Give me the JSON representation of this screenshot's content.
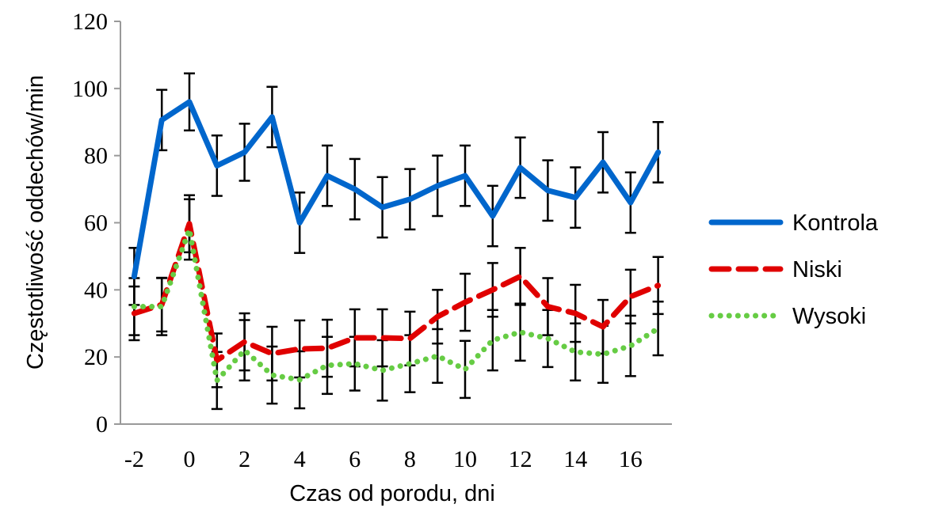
{
  "chart_data": {
    "type": "line",
    "xlabel": "Czas od porodu, dni",
    "ylabel": "Częstotliwość oddechów/min",
    "xlim": [
      -2.5,
      17.5
    ],
    "ylim": [
      0,
      120
    ],
    "x_ticks": [
      -2,
      0,
      2,
      4,
      6,
      8,
      10,
      12,
      14,
      16
    ],
    "y_ticks": [
      0,
      20,
      40,
      60,
      80,
      100,
      120
    ],
    "x": [
      -2,
      -1,
      0,
      1,
      2,
      3,
      4,
      5,
      6,
      7,
      8,
      9,
      10,
      11,
      12,
      13,
      14,
      15,
      16,
      17
    ],
    "legend_position": "right",
    "grid": false,
    "series": [
      {
        "name": "Kontrola",
        "color": "#0066CC",
        "style": "solid",
        "values": [
          44,
          90.6,
          96,
          77,
          81,
          91.5,
          60,
          74,
          70,
          64.6,
          67,
          71,
          74,
          62,
          76.4,
          69.6,
          67.5,
          78,
          66,
          81
        ],
        "error": [
          8.5,
          9,
          8.5,
          9,
          8.5,
          9,
          9,
          9,
          9,
          9,
          9,
          9,
          9,
          9,
          9,
          9,
          9,
          9,
          9,
          9
        ]
      },
      {
        "name": "Niski",
        "color": "#E00000",
        "style": "dashed",
        "values": [
          33,
          35.6,
          59.7,
          19,
          24.5,
          21,
          22.4,
          22.6,
          25.7,
          25.7,
          25.5,
          32,
          36.3,
          40,
          44,
          35,
          33,
          29,
          38,
          41.3
        ],
        "error": [
          8,
          8,
          8.5,
          8,
          8.5,
          8,
          8.5,
          8.5,
          8.5,
          8.5,
          8,
          8,
          8.5,
          8,
          8.5,
          8.5,
          8.5,
          8,
          8,
          8.5
        ]
      },
      {
        "name": "Wysoki",
        "color": "#66CC44",
        "style": "dotted",
        "values": [
          35,
          35,
          58,
          13,
          22,
          14.6,
          13.2,
          17.5,
          18,
          16,
          18,
          20.3,
          16.3,
          25,
          27.4,
          25.5,
          21.5,
          20.8,
          23.3,
          28.5
        ],
        "error": [
          8.5,
          8.5,
          9,
          8.5,
          9,
          8.5,
          8.5,
          8.5,
          8,
          9,
          8.5,
          8,
          8.5,
          9,
          8.5,
          8.5,
          8.5,
          8.5,
          9,
          8
        ]
      }
    ]
  }
}
